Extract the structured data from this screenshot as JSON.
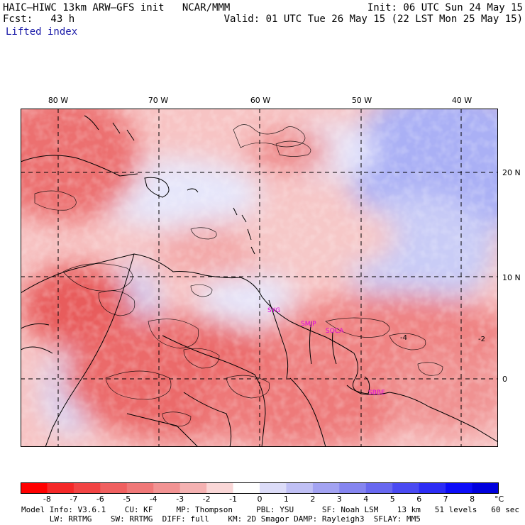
{
  "header": {
    "model_line": "HAIC–HIWC 13km ARW–GFS init   NCAR/MMM",
    "init_line": "Init: 06 UTC Sun 24 May 15",
    "fcst_line": "Fcst:   43 h",
    "valid_line": "Valid: 01 UTC Tue 26 May 15 (22 LST Mon 25 May 15)",
    "field_name": "Lifted index"
  },
  "map": {
    "lon_labels": [
      "80 W",
      "70 W",
      "60 W",
      "50 W",
      "40 W"
    ],
    "lat_labels": [
      "20 N",
      "10 N",
      "0"
    ],
    "stations": [
      "SYG",
      "SMJP",
      "SOCA",
      "SBBE"
    ],
    "contour_labels": [
      "-4",
      "-2"
    ]
  },
  "colorbar": {
    "ticks": [
      "-8",
      "-7",
      "-6",
      "-5",
      "-4",
      "-3",
      "-2",
      "-1",
      "0",
      "1",
      "2",
      "3",
      "4",
      "5",
      "6",
      "7",
      "8"
    ],
    "unit": "°C",
    "colors": [
      "#ff0000",
      "#f52828",
      "#f24444",
      "#f06060",
      "#f07878",
      "#f29393",
      "#f5b2b2",
      "#fad7d7",
      "#ffffff",
      "#dcdcf8",
      "#c0c0f5",
      "#a3a3f2",
      "#8585f0",
      "#6868f0",
      "#4a4af2",
      "#2c2cf5",
      "#0c0cf8",
      "#0000dd"
    ]
  },
  "model_info": {
    "line1": "Model Info: V3.6.1    CU: KF     MP: Thompson     PBL: YSU      SF: Noah LSM    13 km   51 levels   60 sec",
    "line2": "      LW: RRTMG    SW: RRTMG  DIFF: full    KM: 2D Smagor DAMP: Rayleigh3  SFLAY: MM5"
  }
}
